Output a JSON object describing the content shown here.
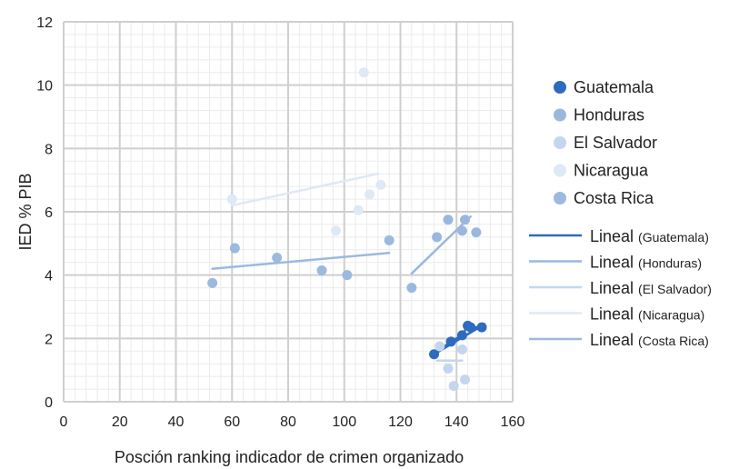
{
  "chart_data": {
    "type": "scatter",
    "xlabel": "Posción ranking indicador de crimen organizado",
    "ylabel": "IED % PIB",
    "xlim": [
      0,
      160
    ],
    "ylim": [
      0,
      12
    ],
    "xticks": [
      "0",
      "20",
      "40",
      "60",
      "80",
      "100",
      "120",
      "140",
      "160"
    ],
    "yticks": [
      "0",
      "2",
      "4",
      "6",
      "8",
      "10",
      "12"
    ],
    "grid": true,
    "legend_position": "right",
    "series": [
      {
        "name": "Guatemala",
        "color": "#2e6bbf",
        "connected": true,
        "points": [
          [
            132,
            1.5
          ],
          [
            138,
            1.9
          ],
          [
            142,
            2.1
          ],
          [
            144,
            2.4
          ],
          [
            145,
            2.35
          ],
          [
            149,
            2.35
          ]
        ]
      },
      {
        "name": "Honduras",
        "color": "#9ab8dd",
        "points": [
          [
            124,
            3.6
          ],
          [
            133,
            5.2
          ],
          [
            137,
            5.75
          ],
          [
            142,
            5.4
          ],
          [
            143,
            5.75
          ],
          [
            147,
            5.35
          ]
        ]
      },
      {
        "name": "El Salvador",
        "color": "#c3d6ee",
        "points": [
          [
            134,
            1.75
          ],
          [
            137,
            1.05
          ],
          [
            139,
            0.5
          ],
          [
            142,
            1.65
          ],
          [
            143,
            0.7
          ]
        ]
      },
      {
        "name": "Nicaragua",
        "color": "#dfe8f5",
        "points": [
          [
            60,
            6.4
          ],
          [
            97,
            5.4
          ],
          [
            105,
            6.05
          ],
          [
            107,
            10.4
          ],
          [
            109,
            6.55
          ],
          [
            113,
            6.85
          ]
        ]
      },
      {
        "name": "Costa Rica",
        "color": "#9cb9de",
        "points": [
          [
            53,
            3.75
          ],
          [
            61,
            4.85
          ],
          [
            76,
            4.55
          ],
          [
            92,
            4.15
          ],
          [
            101,
            4.0
          ],
          [
            116,
            5.1
          ]
        ]
      }
    ],
    "trendlines": [
      {
        "label": "Lineal",
        "series_label": "(Guatemala)",
        "color": "#2e6bbf",
        "from": [
          132,
          1.5
        ],
        "to": [
          150,
          2.45
        ]
      },
      {
        "label": "Lineal",
        "series_label": "(Honduras)",
        "color": "#9ab8dd",
        "from": [
          124,
          4.05
        ],
        "to": [
          145,
          5.85
        ]
      },
      {
        "label": "Lineal",
        "series_label": "(El Salvador)",
        "color": "#c3d6ee",
        "from": [
          133,
          1.3
        ],
        "to": [
          142,
          1.3
        ]
      },
      {
        "label": "Lineal",
        "series_label": "(Nicaragua)",
        "color": "#dfe8f5",
        "from": [
          60,
          6.2
        ],
        "to": [
          112,
          7.2
        ]
      },
      {
        "label": "Lineal",
        "series_label": "(Costa Rica)",
        "color": "#9cb9de",
        "from": [
          53,
          4.2
        ],
        "to": [
          116,
          4.7
        ]
      }
    ]
  }
}
